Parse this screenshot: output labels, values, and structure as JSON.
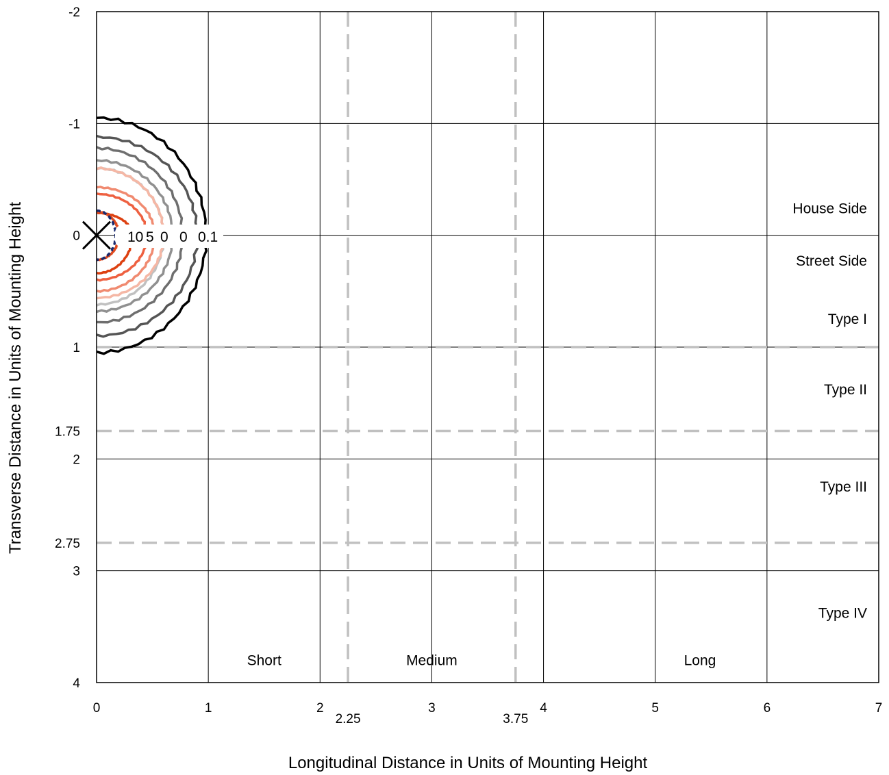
{
  "chart_data": {
    "type": "line",
    "title": "",
    "xlabel": "Longitudinal Distance in Units of Mounting Height",
    "ylabel": "Transverse Distance in Units of Mounting Height",
    "xlim": [
      0,
      7
    ],
    "ylim": [
      -2,
      4
    ],
    "y_inverted": true,
    "grid": true,
    "x_ticks": [
      "0",
      "1",
      "2",
      "3",
      "4",
      "5",
      "6",
      "7"
    ],
    "x_ticks_extra": [
      {
        "value": 2.25,
        "label": "2.25"
      },
      {
        "value": 3.75,
        "label": "3.75"
      }
    ],
    "y_ticks": [
      {
        "value": -2,
        "label": "-2"
      },
      {
        "value": -1,
        "label": "-1"
      },
      {
        "value": 0,
        "label": "0"
      },
      {
        "value": 1,
        "label": "1"
      },
      {
        "value": 1.75,
        "label": "1.75"
      },
      {
        "value": 2,
        "label": "2"
      },
      {
        "value": 2.75,
        "label": "2.75"
      },
      {
        "value": 3,
        "label": "3"
      },
      {
        "value": 4,
        "label": "4"
      }
    ],
    "reference_lines": {
      "vertical_dashed": [
        2.25,
        3.75
      ],
      "horizontal_dashed": [
        1,
        1.75,
        2.75
      ],
      "color": "#c0c0c0"
    },
    "zone_labels": [
      {
        "text": "House Side",
        "x": 6.65,
        "y": -0.24
      },
      {
        "text": "Street Side",
        "x": 6.65,
        "y": 0.23
      },
      {
        "text": "Type I",
        "x": 6.65,
        "y": 0.75
      },
      {
        "text": "Type II",
        "x": 6.65,
        "y": 1.38
      },
      {
        "text": "Type III",
        "x": 6.65,
        "y": 2.25
      },
      {
        "text": "Type IV",
        "x": 6.65,
        "y": 3.38
      },
      {
        "text": "Short",
        "x": 1.5,
        "y": 3.8
      },
      {
        "text": "Medium",
        "x": 3.0,
        "y": 3.8
      },
      {
        "text": "Long",
        "x": 5.4,
        "y": 3.8
      }
    ],
    "luminaire_marker": {
      "x": 0,
      "y": 0,
      "symbol": "X"
    },
    "isolines": [
      {
        "level": "0.1",
        "color": "#000000",
        "r_house": 1.05,
        "r_street": 1.05,
        "r_long": 0.98
      },
      {
        "level": "",
        "color": "#555555",
        "r_house": 0.88,
        "r_street": 0.9,
        "r_long": 0.9
      },
      {
        "level": "",
        "color": "#6e6e6e",
        "r_house": 0.78,
        "r_street": 0.78,
        "r_long": 0.77
      },
      {
        "level": "0",
        "color": "#909090",
        "r_house": 0.67,
        "r_street": 0.68,
        "r_long": 0.68
      },
      {
        "level": "",
        "color": "#c0c0c0",
        "r_house": 0.6,
        "r_street": 0.62,
        "r_long": 0.6
      },
      {
        "level": "",
        "color": "#f5b7a5",
        "r_house": 0.6,
        "r_street": 0.56,
        "r_long": 0.6
      },
      {
        "level": "",
        "color": "#f08a70",
        "r_house": 0.43,
        "r_street": 0.5,
        "r_long": 0.52
      },
      {
        "level": "5",
        "color": "#ee6040",
        "r_house": 0.37,
        "r_street": 0.4,
        "r_long": 0.45
      },
      {
        "level": "",
        "color": "#dd4010",
        "r_house": 0.2,
        "r_street": 0.34,
        "r_long": 0.32
      },
      {
        "level": "10",
        "color": "#e04a1e",
        "r_house": 0.21,
        "r_street": 0.22,
        "r_long": 0.2
      },
      {
        "level": "",
        "color": "#1a2a6e",
        "r_house": 0.22,
        "r_street": 0.22,
        "r_long": 0.17,
        "dashed": true
      }
    ],
    "iso_label_text": [
      "10",
      "5",
      "0",
      "0",
      "0.1"
    ]
  }
}
